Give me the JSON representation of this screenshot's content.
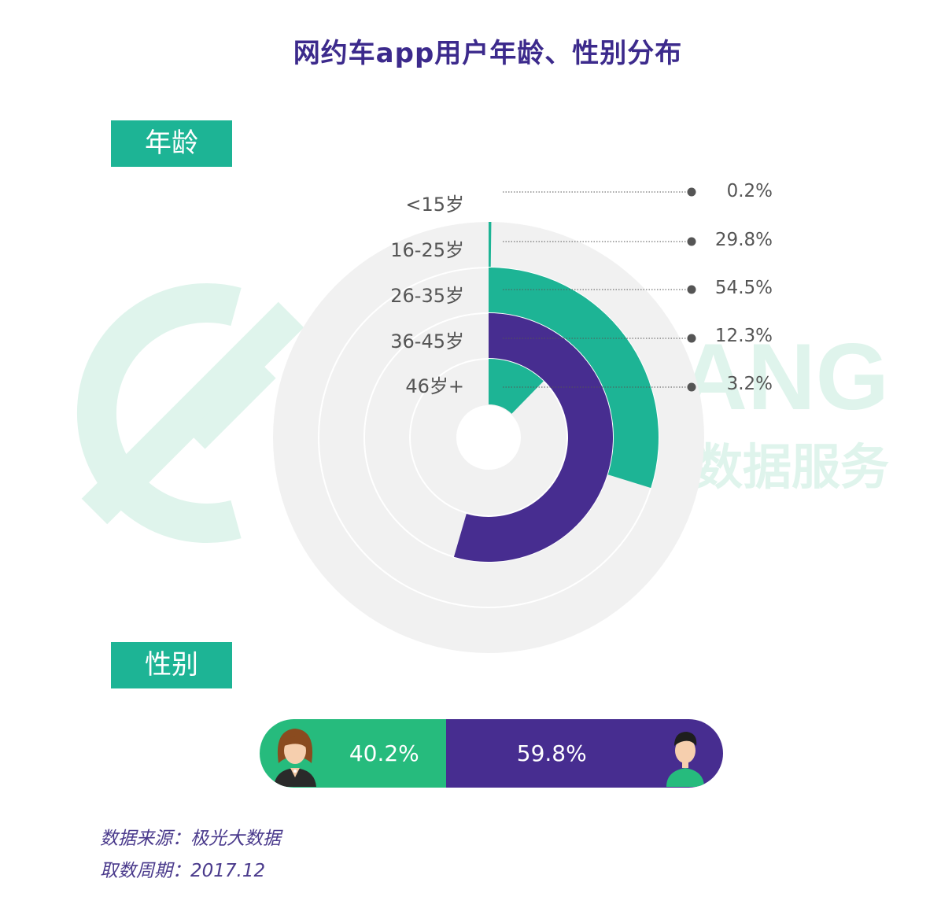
{
  "title": "网约车app用户年龄、性别分布",
  "watermark": {
    "text_en": "ANG",
    "text_cn": "数据服务",
    "color": "#dff4ec"
  },
  "sections": {
    "age": "年龄",
    "gender": "性别"
  },
  "colors": {
    "teal": "#1db495",
    "purple": "#472d90",
    "track": "#f1f1f1",
    "female_green": "#26bb7d",
    "title": "#3c2a8c"
  },
  "chart_data": [
    {
      "type": "radial-bar",
      "categories": [
        "<15岁",
        "16-25岁",
        "26-35岁",
        "36-45岁",
        "46岁+"
      ],
      "values": [
        0.2,
        29.8,
        54.5,
        12.3,
        3.2
      ],
      "value_labels": [
        "0.2%",
        "29.8%",
        "54.5%",
        "12.3%",
        "3.2%"
      ],
      "unit": "%",
      "max": 100
    },
    {
      "type": "stacked-bar",
      "categories": [
        "女",
        "男"
      ],
      "values": [
        40.2,
        59.8
      ],
      "value_labels": [
        "40.2%",
        "59.8%"
      ],
      "unit": "%"
    }
  ],
  "footer": {
    "source": "数据来源：极光大数据",
    "period": "取数周期：2017.12"
  }
}
